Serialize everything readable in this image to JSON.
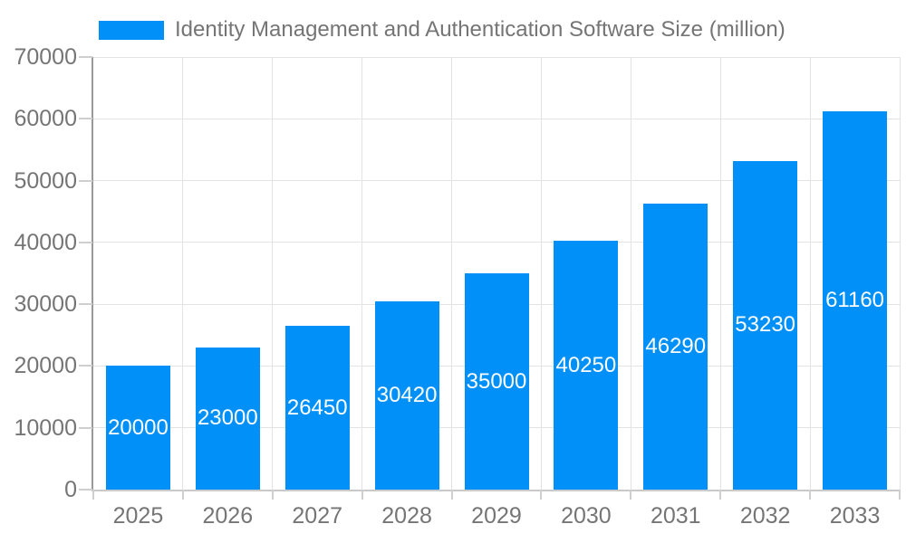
{
  "chart_data": {
    "type": "bar",
    "title": "Identity Management and Authentication Software Size (million)",
    "categories": [
      "2025",
      "2026",
      "2027",
      "2028",
      "2029",
      "2030",
      "2031",
      "2032",
      "2033"
    ],
    "values": [
      20000,
      23000,
      26450,
      30420,
      35000,
      40250,
      46290,
      53230,
      61160
    ],
    "value_labels": [
      "20000",
      "23000",
      "26450",
      "30420",
      "35000",
      "40250",
      "46290",
      "53230",
      "61160"
    ],
    "xlabel": "",
    "ylabel": "",
    "ylim": [
      0,
      70000
    ],
    "yticks": [
      0,
      10000,
      20000,
      30000,
      40000,
      50000,
      60000,
      70000
    ],
    "ytick_labels": [
      "0",
      "10000",
      "20000",
      "30000",
      "40000",
      "50000",
      "60000",
      "70000"
    ],
    "legend_position": "top",
    "grid": true,
    "bar_labels_inside": true,
    "colors": {
      "bar": "#0090f8",
      "bar_label": "#ffffff",
      "text": "#757575",
      "grid": "#e3e3e3",
      "y_axis_line": "#999999",
      "x_axis_line": "#c9c9c9",
      "tick": "#cfcfcf",
      "background": "#ffffff"
    }
  }
}
